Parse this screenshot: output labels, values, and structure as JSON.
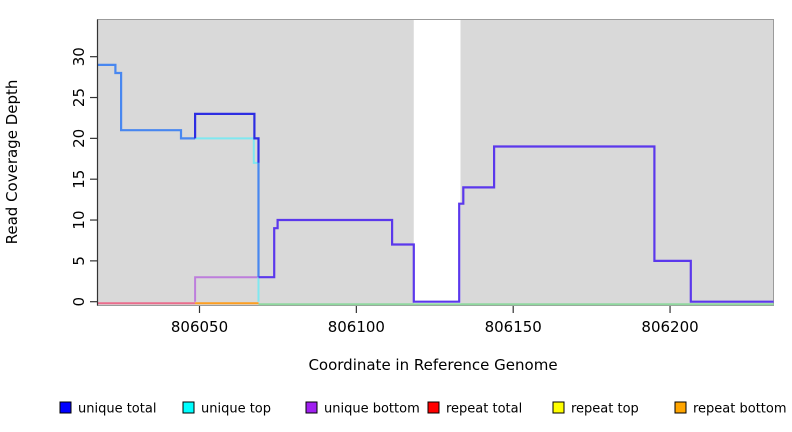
{
  "figure": {
    "page_background": "#FFFFFF",
    "y_axis_title": "Read Coverage Depth",
    "x_axis_title": "Coordinate in Reference Genome"
  },
  "legend": {
    "items": [
      {
        "label": "unique total",
        "color": "#0000FF"
      },
      {
        "label": "unique top",
        "color": "#00FFFF"
      },
      {
        "label": "unique bottom",
        "color": "#A020F0"
      },
      {
        "label": "repeat total",
        "color": "#FF0000"
      },
      {
        "label": "repeat top",
        "color": "#FFFF00"
      },
      {
        "label": "repeat bottom",
        "color": "#FFA500"
      }
    ]
  },
  "chart_data": {
    "type": "line",
    "subtype": "step-coverage",
    "title": "",
    "xlabel": "Coordinate in Reference Genome",
    "ylabel": "Read Coverage Depth",
    "xlim": [
      806017.5,
      806233
    ],
    "ylim": [
      0,
      34.5
    ],
    "x_ticks": [
      806050,
      806100,
      806150,
      806200
    ],
    "y_ticks": [
      0,
      5,
      10,
      15,
      20,
      25,
      30
    ],
    "grid": false,
    "legend_position": "bottom",
    "plot_background": "#D9D9D9",
    "plot_border_color": "#9B9B9B",
    "axis_color": "#333333",
    "gap_band": {
      "from": 806118.3,
      "to": 806133.2,
      "color": "#FFFFFF"
    },
    "series": [
      {
        "name": "unique total",
        "legend_color": "#0000FF",
        "steps": [
          [
            806018,
            29
          ],
          [
            806023,
            28
          ],
          [
            806025,
            21
          ],
          [
            806044,
            20
          ],
          [
            806049,
            23
          ],
          [
            806067,
            20
          ],
          [
            806069,
            3
          ],
          [
            806074,
            9
          ],
          [
            806075,
            10
          ],
          [
            806111,
            7
          ],
          [
            806118,
            0
          ],
          [
            806133,
            12
          ],
          [
            806134,
            14
          ],
          [
            806144,
            19
          ],
          [
            806195,
            5
          ],
          [
            806207,
            0
          ],
          [
            806233,
            0
          ]
        ]
      },
      {
        "name": "unique top",
        "legend_color": "#00FFFF",
        "steps": [
          [
            806018,
            29
          ],
          [
            806023,
            28
          ],
          [
            806025,
            21
          ],
          [
            806044,
            20
          ],
          [
            806049,
            20
          ],
          [
            806067,
            17
          ],
          [
            806069,
            0
          ],
          [
            806233,
            0
          ]
        ]
      },
      {
        "name": "unique bottom",
        "legend_color": "#A020F0",
        "steps": [
          [
            806018,
            0
          ],
          [
            806049,
            3
          ],
          [
            806074,
            9
          ],
          [
            806075,
            10
          ],
          [
            806111,
            7
          ],
          [
            806118,
            0
          ],
          [
            806133,
            12
          ],
          [
            806134,
            14
          ],
          [
            806144,
            19
          ],
          [
            806195,
            5
          ],
          [
            806207,
            0
          ],
          [
            806233,
            0
          ]
        ]
      },
      {
        "name": "repeat total",
        "legend_color": "#FF0000",
        "steps": [
          [
            806018,
            0
          ],
          [
            806233,
            0
          ]
        ]
      },
      {
        "name": "repeat top",
        "legend_color": "#FFFF00",
        "steps": [
          [
            806018,
            0
          ],
          [
            806233,
            0
          ]
        ]
      },
      {
        "name": "repeat bottom",
        "legend_color": "#FFA500",
        "steps": [
          [
            806018,
            0
          ],
          [
            806233,
            0
          ]
        ]
      }
    ],
    "drawn_paths": [
      {
        "name": "baseline-repeat-left",
        "color": "#EA6D8D",
        "width": 2,
        "dy": 1.6,
        "points": [
          [
            806017.6,
            0
          ],
          [
            806048.6,
            0
          ]
        ]
      },
      {
        "name": "baseline-repeat-mid",
        "color": "#FD9E20",
        "width": 2,
        "dy": 1.6,
        "points": [
          [
            806048.6,
            0
          ],
          [
            806068.8,
            0
          ]
        ]
      },
      {
        "name": "baseline-top-right",
        "color": "#90D89F",
        "width": 2,
        "dy": 2.6,
        "points": [
          [
            806068.8,
            0
          ],
          [
            806233,
            0
          ]
        ]
      },
      {
        "name": "unique-bottom-low",
        "color": "#BD7EDC",
        "width": 2,
        "dy": 0,
        "points": [
          [
            806048.6,
            0
          ],
          [
            806048.6,
            3
          ],
          [
            806068.8,
            3
          ]
        ]
      },
      {
        "name": "unique-top-line",
        "color": "#7FE8F0",
        "width": 2,
        "dy": 0,
        "points": [
          [
            806048.6,
            20
          ],
          [
            806067.3,
            20
          ],
          [
            806067.3,
            17
          ],
          [
            806068.8,
            17
          ],
          [
            806068.8,
            0
          ]
        ]
      },
      {
        "name": "unique-total-left",
        "color": "#4887F0",
        "width": 2.2,
        "dy": 0,
        "points": [
          [
            806017.5,
            29
          ],
          [
            806023.2,
            29
          ],
          [
            806023.2,
            28
          ],
          [
            806025,
            28
          ],
          [
            806025,
            21
          ],
          [
            806044.1,
            21
          ],
          [
            806044.1,
            20
          ],
          [
            806048.6,
            20
          ]
        ]
      },
      {
        "name": "unique-total-mid",
        "color": "#2D2DE2",
        "width": 2.2,
        "dy": 0,
        "points": [
          [
            806048.6,
            20
          ],
          [
            806048.6,
            23
          ],
          [
            806067.5,
            23
          ],
          [
            806067.5,
            20
          ],
          [
            806068.8,
            20
          ],
          [
            806068.8,
            17
          ]
        ]
      },
      {
        "name": "unique-total-drop",
        "color": "#4887F0",
        "width": 2.2,
        "dy": 0,
        "points": [
          [
            806068.8,
            17
          ],
          [
            806068.8,
            3
          ]
        ]
      },
      {
        "name": "unique-total-bottom-merge",
        "color": "#5B38EC",
        "width": 2.2,
        "dy": 0,
        "points": [
          [
            806068.8,
            3
          ],
          [
            806073.8,
            3
          ],
          [
            806073.8,
            9
          ],
          [
            806074.9,
            9
          ],
          [
            806074.9,
            10
          ],
          [
            806111.4,
            10
          ],
          [
            806111.4,
            7
          ],
          [
            806118.3,
            7
          ],
          [
            806118.3,
            0
          ],
          [
            806132.8,
            0
          ],
          [
            806132.8,
            12
          ],
          [
            806134.1,
            12
          ],
          [
            806134.1,
            14
          ],
          [
            806143.9,
            14
          ],
          [
            806143.9,
            19
          ],
          [
            806195,
            19
          ],
          [
            806195,
            5
          ],
          [
            806206.6,
            5
          ],
          [
            806206.6,
            0
          ],
          [
            806233,
            0
          ]
        ]
      }
    ]
  }
}
